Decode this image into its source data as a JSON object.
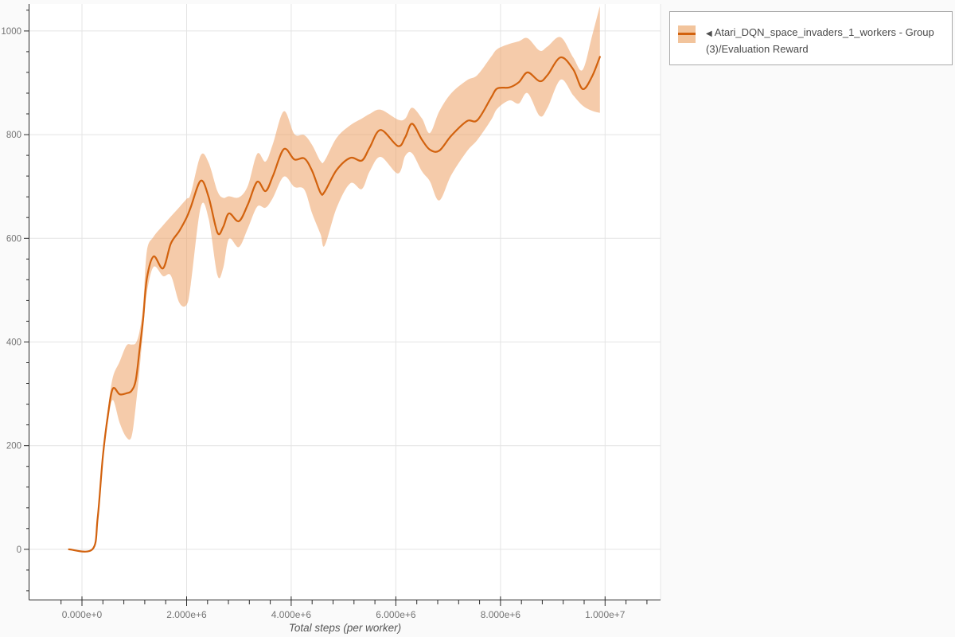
{
  "page": {
    "background": "#fafafa",
    "plot_background": "#ffffff",
    "grid_color": "#e4e4e4",
    "axis_color": "#2a2a2a",
    "tick_label_color": "#757575",
    "axis_title_color": "#555555"
  },
  "legend": {
    "collapse_icon": "◀",
    "label": "Atari_DQN_space_invaders_1_workers - Group(3)/Evaluation Reward",
    "band_color": "#f2c49c",
    "line_color": "#d2620e",
    "border_color": "#a9a9a9"
  },
  "chart_data": {
    "type": "line",
    "title": "",
    "xlabel": "Total steps (per worker)",
    "ylabel": "",
    "grid": true,
    "legend_position": "top-right",
    "xlim": [
      -1004000,
      11060000
    ],
    "ylim": [
      -97,
      1052
    ],
    "x_ticks_major": [
      {
        "value": 0,
        "label": "0.000e+0"
      },
      {
        "value": 2000000,
        "label": "2.000e+6"
      },
      {
        "value": 4000000,
        "label": "4.000e+6"
      },
      {
        "value": 6000000,
        "label": "6.000e+6"
      },
      {
        "value": 8000000,
        "label": "8.000e+6"
      },
      {
        "value": 10000000,
        "label": "1.000e+7"
      }
    ],
    "x_minor": {
      "start": -400000,
      "end": 10800000,
      "step": 400000
    },
    "y_ticks_major": [
      {
        "value": 0,
        "label": "0"
      },
      {
        "value": 200,
        "label": "200"
      },
      {
        "value": 400,
        "label": "400"
      },
      {
        "value": 600,
        "label": "600"
      },
      {
        "value": 800,
        "label": "800"
      },
      {
        "value": 1000,
        "label": "1000"
      }
    ],
    "y_minor": {
      "start": -80,
      "end": 1040,
      "step": 40
    },
    "series": [
      {
        "name": "Atari_DQN_space_invaders_1_workers - Group(3)/Evaluation Reward",
        "color": "#d2620e",
        "band_color": "rgba(237,160,101,0.55)",
        "points_format": [
          "step",
          "mean",
          "lower",
          "upper"
        ],
        "points": [
          [
            -250000,
            0,
            0,
            0
          ],
          [
            200000,
            0,
            0,
            0
          ],
          [
            300000,
            60,
            60,
            60
          ],
          [
            400000,
            180,
            172,
            188
          ],
          [
            500000,
            262,
            248,
            274
          ],
          [
            590000,
            310,
            288,
            332
          ],
          [
            720000,
            299,
            244,
            362
          ],
          [
            850000,
            301,
            216,
            393
          ],
          [
            950000,
            306,
            218,
            395
          ],
          [
            1030000,
            327,
            278,
            398
          ],
          [
            1100000,
            384,
            345,
            420
          ],
          [
            1170000,
            445,
            425,
            470
          ],
          [
            1240000,
            522,
            495,
            575
          ],
          [
            1370000,
            565,
            545,
            603
          ],
          [
            1550000,
            542,
            527,
            625
          ],
          [
            1700000,
            590,
            528,
            642
          ],
          [
            1860000,
            614,
            476,
            660
          ],
          [
            2000000,
            640,
            472,
            676
          ],
          [
            2080000,
            660,
            511,
            686
          ],
          [
            2270000,
            711,
            660,
            760
          ],
          [
            2420000,
            680,
            638,
            746
          ],
          [
            2590000,
            611,
            529,
            691
          ],
          [
            2700000,
            622,
            543,
            678
          ],
          [
            2810000,
            648,
            599,
            681
          ],
          [
            3000000,
            633,
            583,
            679
          ],
          [
            3170000,
            665,
            619,
            701
          ],
          [
            3350000,
            709,
            661,
            763
          ],
          [
            3510000,
            691,
            659,
            748
          ],
          [
            3650000,
            720,
            678,
            782
          ],
          [
            3860000,
            772,
            719,
            845
          ],
          [
            4060000,
            752,
            699,
            801
          ],
          [
            4250000,
            754,
            694,
            799
          ],
          [
            4400000,
            730,
            648,
            780
          ],
          [
            4560000,
            688,
            608,
            749
          ],
          [
            4640000,
            690,
            586,
            750
          ],
          [
            4870000,
            732,
            659,
            794
          ],
          [
            5130000,
            755,
            706,
            818
          ],
          [
            5350000,
            750,
            695,
            831
          ],
          [
            5500000,
            775,
            729,
            840
          ],
          [
            5710000,
            809,
            757,
            848
          ],
          [
            6040000,
            778,
            725,
            829
          ],
          [
            6180000,
            795,
            759,
            831
          ],
          [
            6310000,
            821,
            764,
            852
          ],
          [
            6500000,
            790,
            729,
            831
          ],
          [
            6650000,
            771,
            710,
            803
          ],
          [
            6830000,
            769,
            673,
            845
          ],
          [
            7060000,
            798,
            722,
            880
          ],
          [
            7360000,
            826,
            768,
            905
          ],
          [
            7560000,
            828,
            790,
            915
          ],
          [
            7820000,
            871,
            828,
            950
          ],
          [
            7940000,
            889,
            850,
            965
          ],
          [
            8170000,
            891,
            866,
            975
          ],
          [
            8350000,
            901,
            860,
            980
          ],
          [
            8520000,
            920,
            880,
            986
          ],
          [
            8750000,
            903,
            836,
            962
          ],
          [
            8900000,
            915,
            852,
            970
          ],
          [
            9150000,
            949,
            906,
            988
          ],
          [
            9390000,
            926,
            876,
            949
          ],
          [
            9570000,
            888,
            856,
            925
          ],
          [
            9750000,
            912,
            846,
            990
          ],
          [
            9900000,
            950,
            842,
            1048
          ]
        ]
      }
    ]
  }
}
